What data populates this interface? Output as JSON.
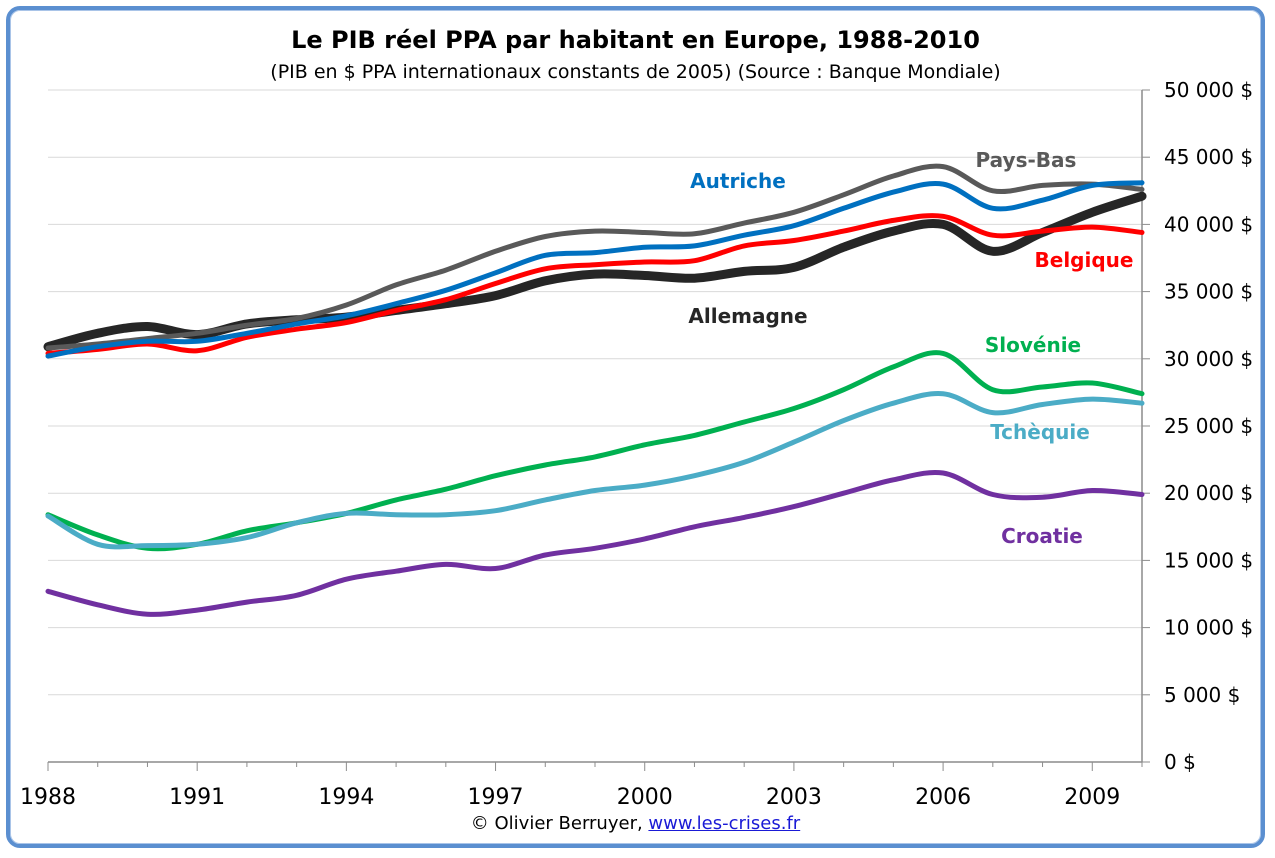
{
  "chart_data": {
    "type": "line",
    "title": "Le PIB réel PPA par habitant en Europe, 1988-2010",
    "subtitle": "(PIB en $ PPA internationaux constants de 2005) (Source : Banque Mondiale)",
    "xlabel": "",
    "ylabel": "",
    "xlim": [
      1988,
      2010
    ],
    "ylim": [
      0,
      50000
    ],
    "x_ticks": [
      "1988",
      "1991",
      "1994",
      "1997",
      "2000",
      "2003",
      "2006",
      "2009"
    ],
    "y_ticks": [
      "0 $",
      "5 000 $",
      "10 000 $",
      "15 000 $",
      "20 000 $",
      "25 000 $",
      "30 000 $",
      "35 000 $",
      "40 000 $",
      "45 000 $",
      "50 000 $"
    ],
    "grid": true,
    "y_axis_side": "right",
    "x": [
      1988,
      1989,
      1990,
      1991,
      1992,
      1993,
      1994,
      1995,
      1996,
      1997,
      1998,
      1999,
      2000,
      2001,
      2002,
      2003,
      2004,
      2005,
      2006,
      2007,
      2008,
      2009,
      2010
    ],
    "series": [
      {
        "name": "Pays-Bas",
        "color": "#595959",
        "values": [
          30800,
          31100,
          31500,
          31900,
          32500,
          33000,
          34000,
          35500,
          36600,
          38000,
          39100,
          39500,
          39400,
          39300,
          40100,
          40900,
          42200,
          43600,
          44300,
          42500,
          42900,
          43000,
          42600
        ]
      },
      {
        "name": "Autriche",
        "color": "#0070c0",
        "values": [
          30200,
          30900,
          31300,
          31300,
          31900,
          32600,
          33200,
          34100,
          35100,
          36400,
          37700,
          37900,
          38300,
          38400,
          39200,
          39900,
          41200,
          42400,
          43000,
          41200,
          41800,
          42900,
          43100
        ]
      },
      {
        "name": "Belgique",
        "color": "#ff0000",
        "values": [
          30400,
          30700,
          31100,
          30600,
          31600,
          32200,
          32700,
          33600,
          34400,
          35600,
          36700,
          37000,
          37200,
          37300,
          38400,
          38800,
          39500,
          40300,
          40600,
          39200,
          39500,
          39800,
          39400
        ]
      },
      {
        "name": "Allemagne",
        "color": "#262626",
        "values": [
          30900,
          31900,
          32400,
          31800,
          32600,
          32900,
          33100,
          33600,
          34100,
          34700,
          35800,
          36300,
          36200,
          36000,
          36500,
          36800,
          38300,
          39500,
          40000,
          38000,
          39400,
          40900,
          42100
        ]
      },
      {
        "name": "Slovénie",
        "color": "#00b050",
        "values": [
          18400,
          16900,
          15900,
          16200,
          17200,
          17800,
          18500,
          19500,
          20300,
          21300,
          22100,
          22700,
          23600,
          24300,
          25300,
          26300,
          27700,
          29400,
          30400,
          27700,
          27900,
          28200,
          27400
        ]
      },
      {
        "name": "Tchèquie",
        "color": "#4bacc6",
        "values": [
          18300,
          16200,
          16100,
          16200,
          16700,
          17800,
          18500,
          18400,
          18400,
          18700,
          19500,
          20200,
          20600,
          21300,
          22300,
          23800,
          25400,
          26700,
          27400,
          26000,
          26600,
          27000,
          26700
        ]
      },
      {
        "name": "Croatie",
        "color": "#7030a0",
        "values": [
          12700,
          11700,
          11000,
          11300,
          11900,
          12400,
          13600,
          14200,
          14700,
          14400,
          15400,
          15900,
          16600,
          17500,
          18200,
          19000,
          20000,
          21000,
          21500,
          19900,
          19700,
          20200,
          19900
        ]
      }
    ]
  },
  "footer": {
    "copyright": "© Olivier Berruyer,",
    "link": "www.les-crises.fr"
  }
}
